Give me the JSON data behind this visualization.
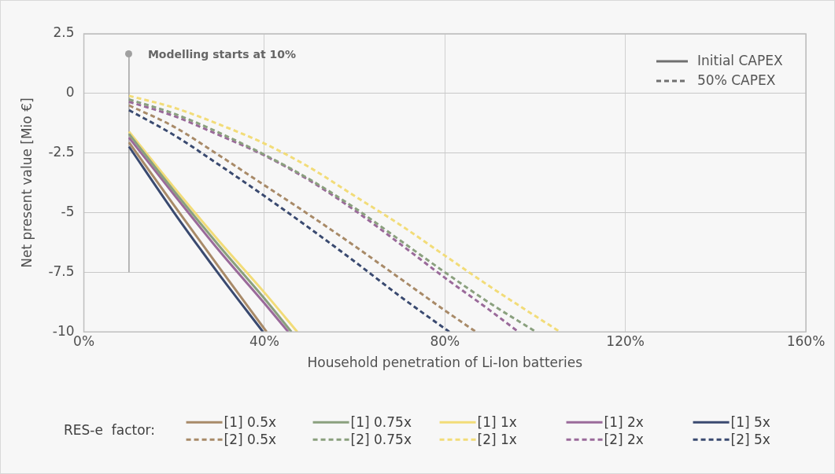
{
  "chart_data": {
    "type": "line",
    "xlabel": "Household penetration of Li-Ion batteries",
    "ylabel": "Net present value [Mio €]",
    "legend_title": "RES-e  factor:",
    "legend": "bottom",
    "grid": true,
    "xlim": [
      0,
      160
    ],
    "xticks": [
      {
        "value": 0,
        "label": "0%"
      },
      {
        "value": 40,
        "label": "40%"
      },
      {
        "value": 80,
        "label": "80%"
      },
      {
        "value": 120,
        "label": "120%"
      },
      {
        "value": 160,
        "label": "160%"
      }
    ],
    "ylim": [
      -10,
      2.5
    ],
    "yticks": [
      -10,
      -7.5,
      -5,
      -2.5,
      0,
      2.5
    ],
    "annotations": [
      {
        "text": "Modelling starts at 10%",
        "x": 10,
        "y": 1.65
      }
    ],
    "series": [
      {
        "name": "[1] 0.5x",
        "color": "#a88a68",
        "line_style": "solid",
        "x": [
          10,
          20,
          30,
          40.5
        ],
        "values": [
          -2.05,
          -4.7,
          -7.3,
          -10
        ]
      },
      {
        "name": "[1] 0.75x",
        "color": "#8aa07e",
        "line_style": "solid",
        "x": [
          10,
          20,
          30,
          40,
          46
        ],
        "values": [
          -1.7,
          -4.1,
          -6.4,
          -8.6,
          -10
        ]
      },
      {
        "name": "[1] 1x",
        "color": "#f2dc78",
        "line_style": "solid",
        "x": [
          10,
          20,
          30,
          40,
          47.3
        ],
        "values": [
          -1.6,
          -3.95,
          -6.2,
          -8.35,
          -10
        ]
      },
      {
        "name": "[1] 2x",
        "color": "#9a6a9a",
        "line_style": "solid",
        "x": [
          10,
          20,
          30,
          40,
          45.3
        ],
        "values": [
          -1.85,
          -4.25,
          -6.6,
          -8.8,
          -10
        ]
      },
      {
        "name": "[1] 5x",
        "color": "#3a4a70",
        "line_style": "solid",
        "x": [
          10,
          20,
          30,
          39.7
        ],
        "values": [
          -2.23,
          -5.0,
          -7.6,
          -10
        ]
      },
      {
        "name": "[2] 0.5x",
        "color": "#a88a68",
        "line_style": "dashed",
        "x": [
          10,
          20,
          30,
          40,
          50,
          60,
          70,
          80,
          86.9
        ],
        "values": [
          -0.5,
          -1.4,
          -2.6,
          -3.85,
          -5.1,
          -6.4,
          -7.75,
          -9.1,
          -10
        ]
      },
      {
        "name": "[2] 0.75x",
        "color": "#8aa07e",
        "line_style": "dashed",
        "x": [
          10,
          20,
          30,
          40,
          50,
          60,
          70,
          80,
          90,
          100.2
        ],
        "values": [
          -0.25,
          -0.85,
          -1.65,
          -2.57,
          -3.6,
          -4.8,
          -6.15,
          -7.5,
          -8.8,
          -10
        ]
      },
      {
        "name": "[2] 1x",
        "color": "#f2dc78",
        "line_style": "dashed",
        "x": [
          10,
          20,
          30,
          40,
          50,
          60,
          70,
          80,
          90,
          105.5
        ],
        "values": [
          -0.1,
          -0.6,
          -1.3,
          -2.1,
          -3.1,
          -4.3,
          -5.5,
          -6.8,
          -8.1,
          -10
        ]
      },
      {
        "name": "[2] 2x",
        "color": "#9a6a9a",
        "line_style": "dashed",
        "x": [
          10,
          20,
          30,
          40,
          50,
          60,
          70,
          80,
          90,
          96.3
        ],
        "values": [
          -0.35,
          -0.95,
          -1.75,
          -2.6,
          -3.65,
          -4.9,
          -6.3,
          -7.73,
          -9.1,
          -10
        ]
      },
      {
        "name": "[2] 5x",
        "color": "#3a4a70",
        "line_style": "dashed",
        "x": [
          10,
          20,
          30,
          40,
          50,
          60,
          70,
          81
        ],
        "values": [
          -0.7,
          -1.75,
          -3.0,
          -4.3,
          -5.65,
          -7.05,
          -8.5,
          -10
        ]
      },
      {
        "name": "Initial CAPEX",
        "color": "#707070",
        "line_style": "solid"
      },
      {
        "name": "50% CAPEX",
        "color": "#707070",
        "line_style": "dashed"
      },
      {
        "color": "#a0a0a0",
        "line_style": "solid",
        "x": [
          10,
          10
        ],
        "values": [
          1.65,
          -7.5
        ]
      }
    ]
  }
}
